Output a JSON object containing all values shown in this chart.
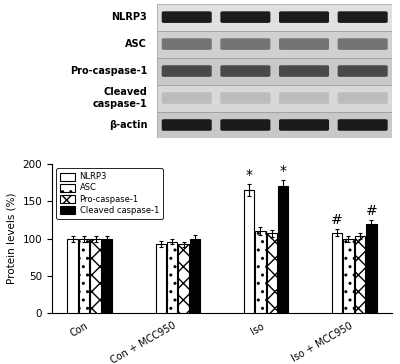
{
  "groups": [
    "Con",
    "Con + MCC950",
    "Iso",
    "Iso + MCC950"
  ],
  "proteins": [
    "NLRP3",
    "ASC",
    "Pro-caspase-1",
    "Cleaved caspase-1"
  ],
  "values": {
    "NLRP3": [
      100,
      93,
      165,
      108
    ],
    "ASC": [
      100,
      96,
      110,
      100
    ],
    "Pro-caspase-1": [
      100,
      92,
      107,
      103
    ],
    "Cleaved caspase-1": [
      100,
      100,
      170,
      120
    ]
  },
  "errors": {
    "NLRP3": [
      4,
      4,
      8,
      5
    ],
    "ASC": [
      4,
      4,
      5,
      4
    ],
    "Pro-caspase-1": [
      4,
      4,
      5,
      4
    ],
    "Cleaved caspase-1": [
      4,
      5,
      8,
      5
    ]
  },
  "ylabel": "Protein levels (%)",
  "ylim": [
    0,
    200
  ],
  "yticks": [
    0,
    50,
    100,
    150,
    200
  ],
  "legend_labels": [
    "NLRP3",
    "ASC",
    "Pro-caspase-1",
    "Cleaved caspase-1"
  ],
  "wb_labels": [
    "NLRP3",
    "ASC",
    "Pro-caspase-1",
    "Cleaved\ncaspase-1",
    "β-actin"
  ],
  "wb_band_colors": [
    "#111111",
    "#555555",
    "#333333",
    "#aaaaaa",
    "#111111"
  ],
  "wb_band_alphas": [
    0.95,
    0.75,
    0.85,
    0.6,
    0.95
  ],
  "figure_bg": "white"
}
